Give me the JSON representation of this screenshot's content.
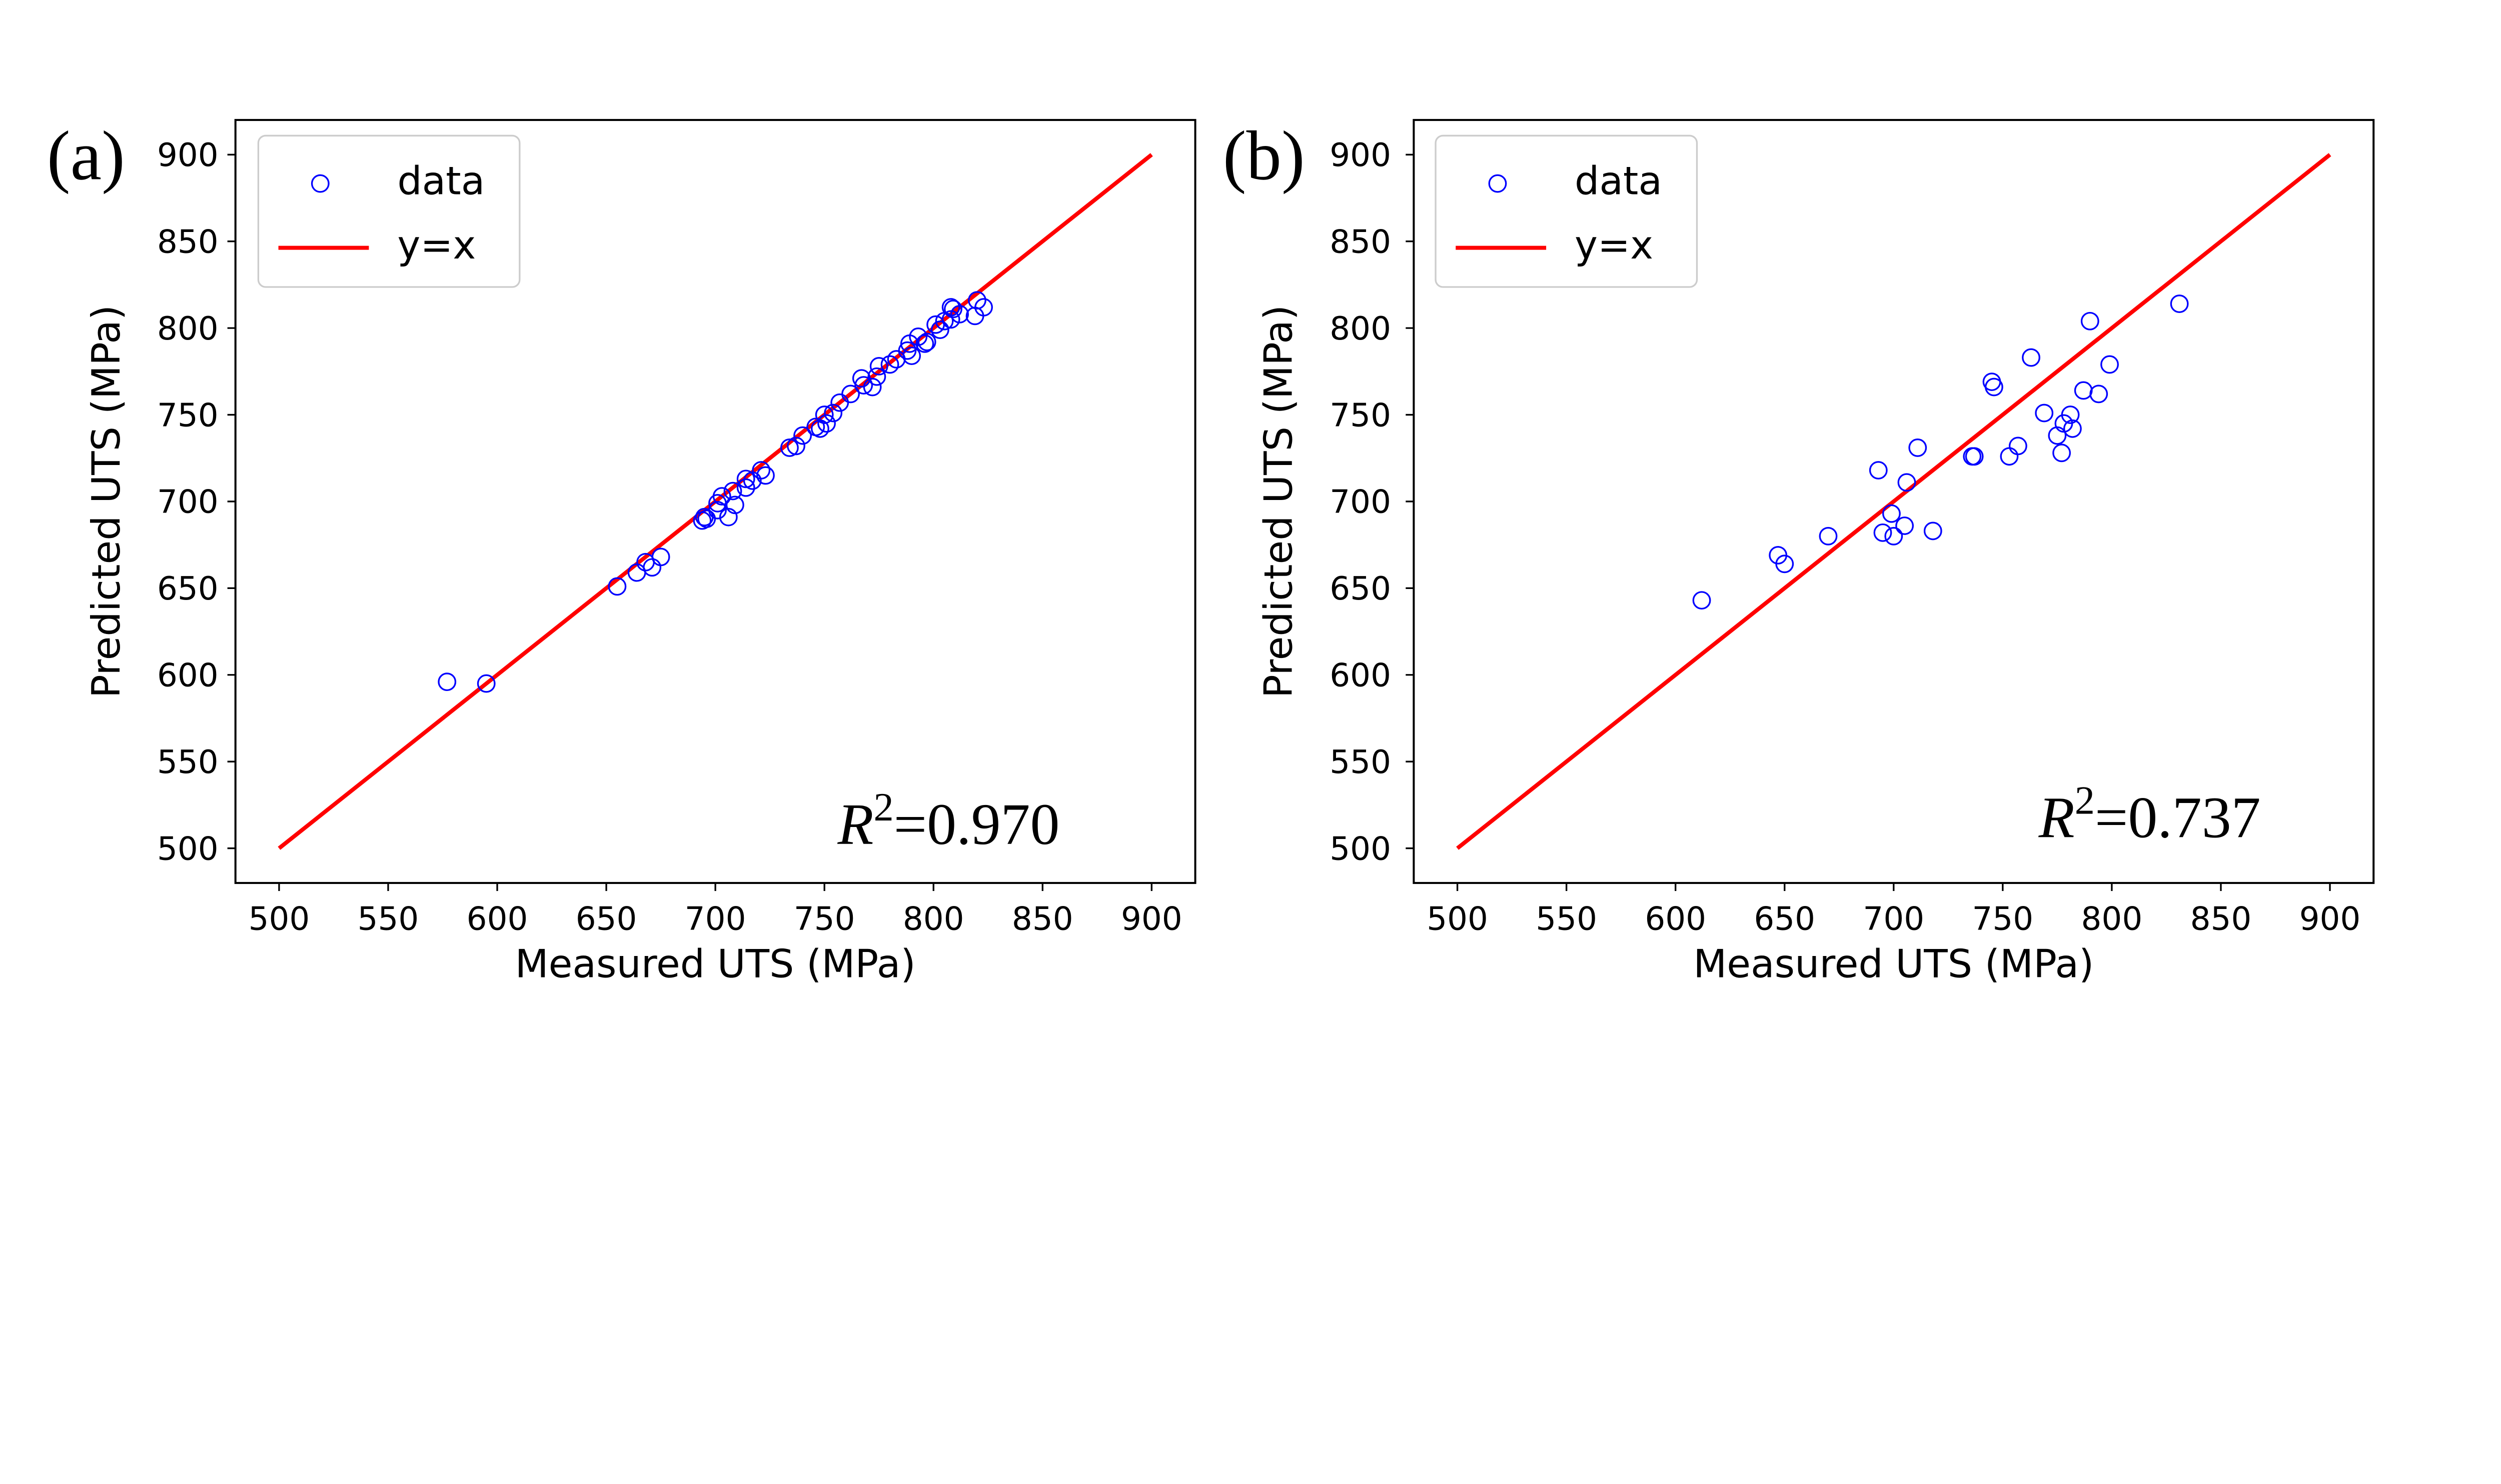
{
  "chart_data": [
    {
      "panel_label": "(a)",
      "type": "scatter",
      "xlabel": "Measured UTS (MPa)",
      "ylabel": "Predicted UTS (MPa)",
      "xlim": [
        480,
        920
      ],
      "ylim": [
        480,
        920
      ],
      "xticks": [
        500,
        550,
        600,
        650,
        700,
        750,
        800,
        850,
        900
      ],
      "yticks": [
        500,
        550,
        600,
        650,
        700,
        750,
        800,
        850,
        900
      ],
      "grid": false,
      "legend": {
        "placement": "top-left",
        "entries": [
          "data",
          "y=x"
        ]
      },
      "annotation": {
        "var": "R",
        "exp": "2",
        "value": "=0.970"
      },
      "colors": {
        "data": "#0000ff",
        "reference_line": "#ff0000"
      },
      "reference_line": {
        "label": "y=x",
        "x": [
          500,
          900
        ],
        "y": [
          500,
          900
        ]
      },
      "series": [
        {
          "name": "data",
          "marker": "hollow-circle",
          "points": [
            [
              577,
              596
            ],
            [
              595,
              595
            ],
            [
              655,
              651
            ],
            [
              664,
              659
            ],
            [
              668,
              665
            ],
            [
              671,
              662
            ],
            [
              675,
              668
            ],
            [
              694,
              689
            ],
            [
              695,
              691
            ],
            [
              696,
              690
            ],
            [
              701,
              699
            ],
            [
              703,
              703
            ],
            [
              701,
              695
            ],
            [
              706,
              691
            ],
            [
              709,
              698
            ],
            [
              708,
              706
            ],
            [
              714,
              708
            ],
            [
              714,
              713
            ],
            [
              717,
              712
            ],
            [
              723,
              715
            ],
            [
              721,
              718
            ],
            [
              734,
              731
            ],
            [
              737,
              732
            ],
            [
              740,
              738
            ],
            [
              746,
              743
            ],
            [
              748,
              742
            ],
            [
              750,
              750
            ],
            [
              754,
              751
            ],
            [
              751,
              745
            ],
            [
              757,
              757
            ],
            [
              762,
              762
            ],
            [
              767,
              771
            ],
            [
              768,
              767
            ],
            [
              772,
              766
            ],
            [
              774,
              772
            ],
            [
              775,
              778
            ],
            [
              780,
              779
            ],
            [
              783,
              782
            ],
            [
              789,
              791
            ],
            [
              788,
              787
            ],
            [
              790,
              784
            ],
            [
              793,
              795
            ],
            [
              797,
              792
            ],
            [
              796,
              791
            ],
            [
              801,
              802
            ],
            [
              803,
              799
            ],
            [
              805,
              804
            ],
            [
              808,
              805
            ],
            [
              808,
              812
            ],
            [
              809,
              811
            ],
            [
              812,
              808
            ],
            [
              820,
              816
            ],
            [
              823,
              812
            ],
            [
              819,
              807
            ]
          ]
        }
      ]
    },
    {
      "panel_label": "(b)",
      "type": "scatter",
      "xlabel": "Measured UTS (MPa)",
      "ylabel": "Predicted UTS (MPa)",
      "xlim": [
        480,
        920
      ],
      "ylim": [
        480,
        920
      ],
      "xticks": [
        500,
        550,
        600,
        650,
        700,
        750,
        800,
        850,
        900
      ],
      "yticks": [
        500,
        550,
        600,
        650,
        700,
        750,
        800,
        850,
        900
      ],
      "grid": false,
      "legend": {
        "placement": "top-left",
        "entries": [
          "data",
          "y=x"
        ]
      },
      "annotation": {
        "var": "R",
        "exp": "2",
        "value": "=0.737"
      },
      "colors": {
        "data": "#0000ff",
        "reference_line": "#ff0000"
      },
      "reference_line": {
        "label": "y=x",
        "x": [
          500,
          900
        ],
        "y": [
          500,
          900
        ]
      },
      "series": [
        {
          "name": "data",
          "marker": "hollow-circle",
          "points": [
            [
              612,
              643
            ],
            [
              647,
              669
            ],
            [
              650,
              664
            ],
            [
              670,
              680
            ],
            [
              693,
              718
            ],
            [
              695,
              682
            ],
            [
              699,
              693
            ],
            [
              700,
              680
            ],
            [
              705,
              686
            ],
            [
              706,
              711
            ],
            [
              711,
              731
            ],
            [
              718,
              683
            ],
            [
              736,
              726
            ],
            [
              737,
              726
            ],
            [
              753,
              726
            ],
            [
              757,
              732
            ],
            [
              745,
              769
            ],
            [
              746,
              766
            ],
            [
              763,
              783
            ],
            [
              769,
              751
            ],
            [
              775,
              738
            ],
            [
              777,
              728
            ],
            [
              778,
              745
            ],
            [
              781,
              750
            ],
            [
              782,
              742
            ],
            [
              787,
              764
            ],
            [
              790,
              804
            ],
            [
              794,
              762
            ],
            [
              799,
              779
            ],
            [
              831,
              814
            ]
          ]
        }
      ]
    }
  ]
}
